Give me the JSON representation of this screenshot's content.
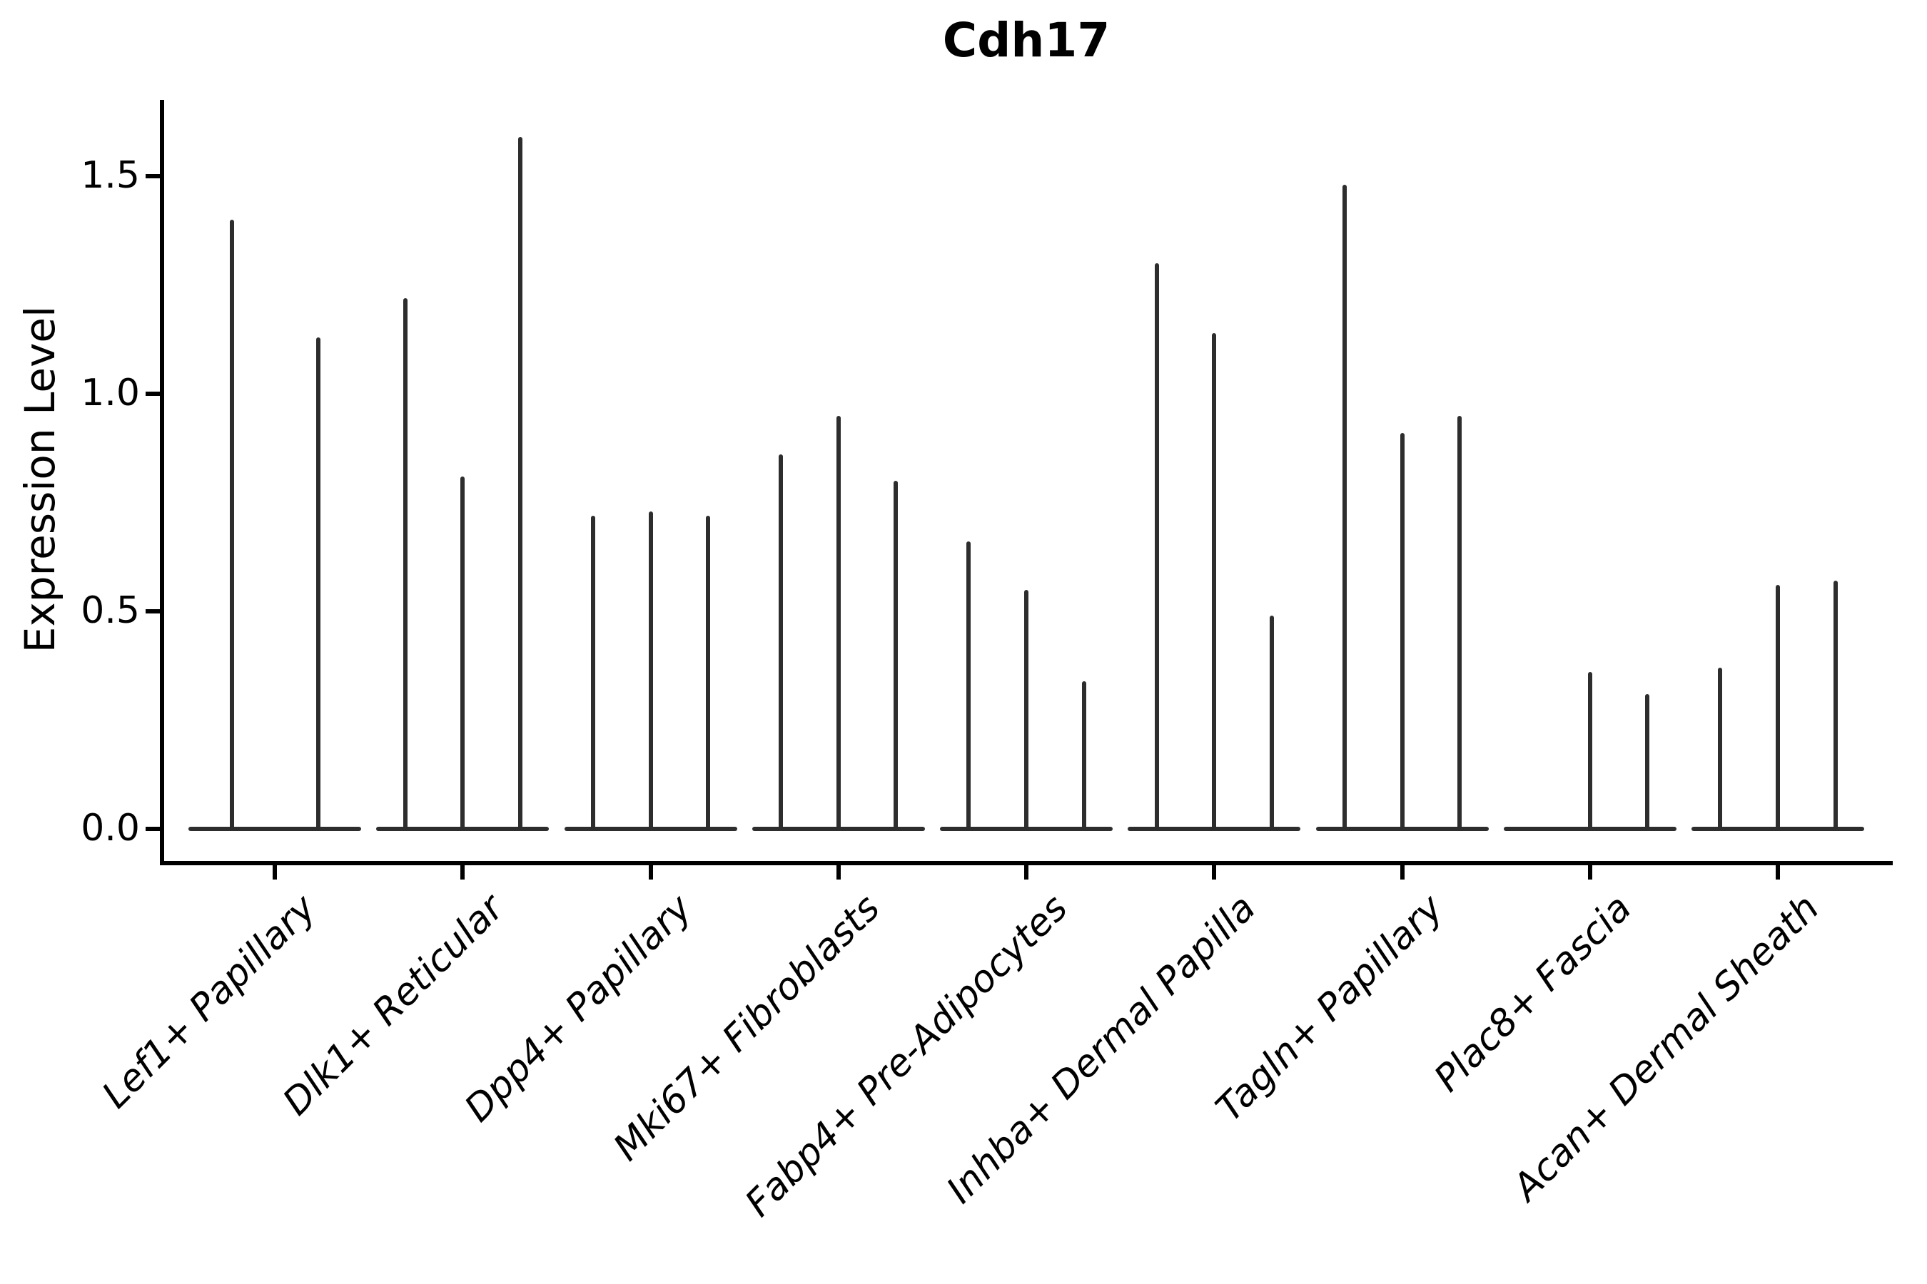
{
  "title": "Cdh17",
  "y_axis": {
    "label": "Expression Level",
    "tick_labels": [
      "0.0",
      "0.5",
      "1.0",
      "1.5"
    ],
    "tick_values": [
      0.0,
      0.5,
      1.0,
      1.5
    ]
  },
  "chart_data": {
    "type": "violin",
    "title": "Cdh17",
    "xlabel": "",
    "ylabel": "Expression Level",
    "ylim": [
      0,
      1.68
    ],
    "yticks": [
      0.0,
      0.5,
      1.0,
      1.5
    ],
    "grid": false,
    "legend": "none",
    "x_tick_rotation": 45,
    "categories": [
      "Lef1+ Papillary",
      "Dlk1+ Reticular",
      "Dpp4+ Papillary",
      "Mki67+ Fibroblasts",
      "Fabp4+ Pre-Adipocytes",
      "Inhba+ Dermal Papilla",
      "Tagln+ Papillary",
      "Plac8+ Fascia",
      "Acan+ Dermal Sheath"
    ],
    "series": [
      {
        "category": "Lef1+ Papillary",
        "violin_peaks": [
          1.4,
          1.13
        ]
      },
      {
        "category": "Dlk1+ Reticular",
        "violin_peaks": [
          1.22,
          0.81,
          1.59
        ]
      },
      {
        "category": "Dpp4+ Papillary",
        "violin_peaks": [
          0.72,
          0.73,
          0.72
        ]
      },
      {
        "category": "Mki67+ Fibroblasts",
        "violin_peaks": [
          0.86,
          0.95,
          0.8
        ]
      },
      {
        "category": "Fabp4+ Pre-Adipocytes",
        "violin_peaks": [
          0.66,
          0.55,
          0.34
        ]
      },
      {
        "category": "Inhba+ Dermal Papilla",
        "violin_peaks": [
          1.3,
          1.14,
          0.49
        ]
      },
      {
        "category": "Tagln+ Papillary",
        "violin_peaks": [
          1.48,
          0.91,
          0.95
        ]
      },
      {
        "category": "Plac8+ Fascia",
        "violin_peaks": [
          0.0,
          0.36,
          0.31
        ]
      },
      {
        "category": "Acan+ Dermal Sheath",
        "violin_peaks": [
          0.37,
          0.56,
          0.57
        ]
      }
    ]
  },
  "colors": {
    "violin": "#2d2d2d",
    "axis": "#000000",
    "text": "#000000",
    "background": "#ffffff"
  }
}
